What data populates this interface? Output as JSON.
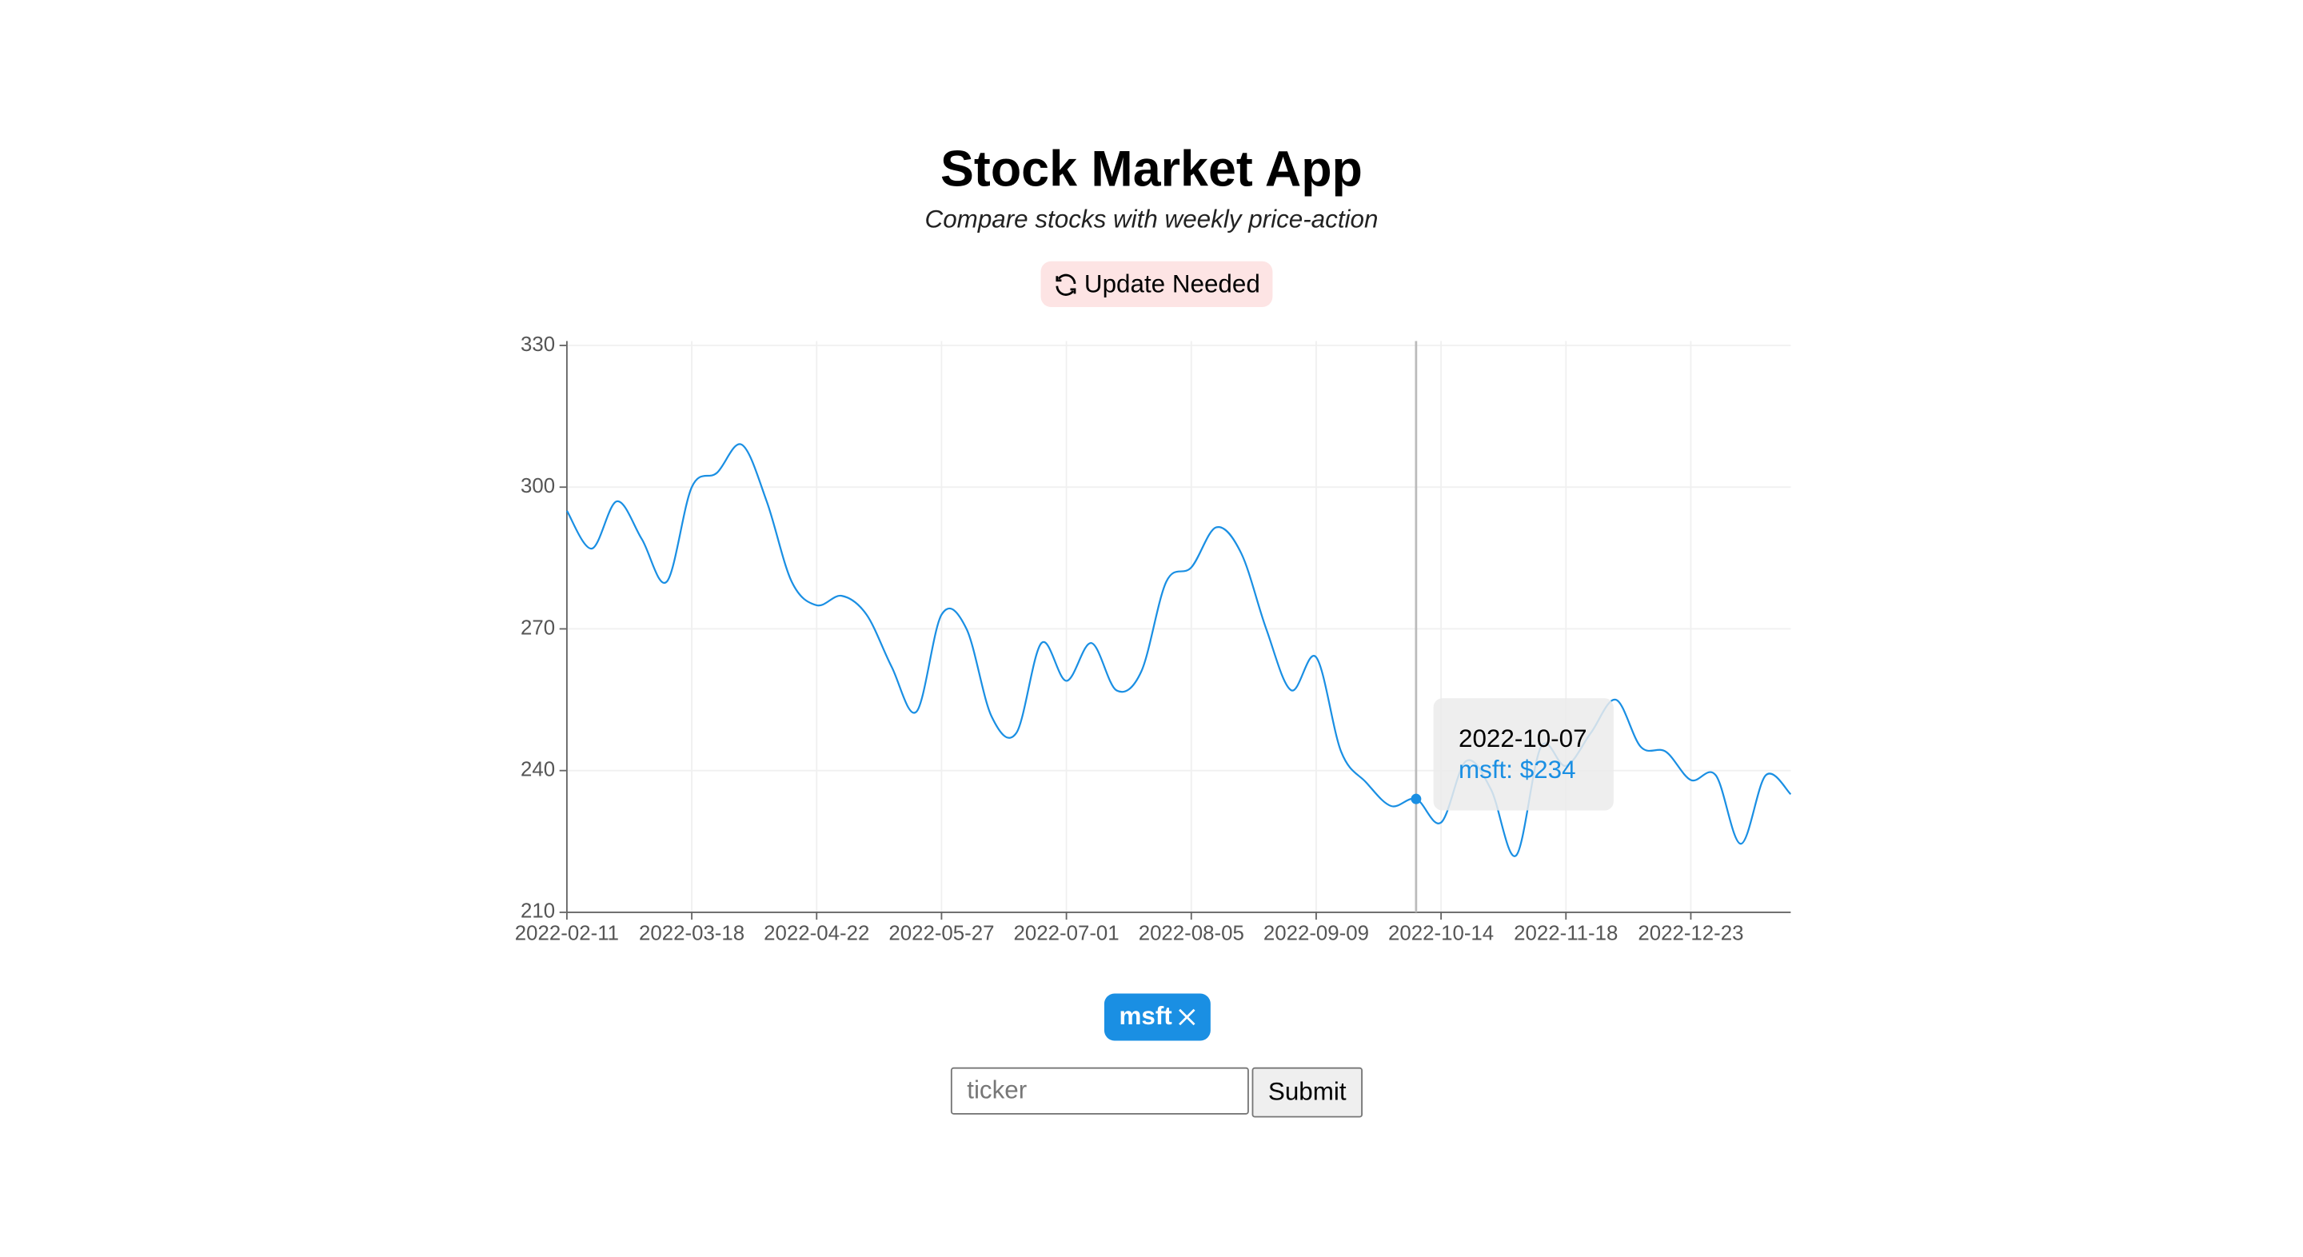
{
  "header": {
    "title": "Stock Market App",
    "subtitle": "Compare stocks with weekly price-action"
  },
  "status": {
    "label": "Update Needed"
  },
  "chart_data": {
    "type": "line",
    "x": [
      "2022-02-11",
      "2022-02-18",
      "2022-02-25",
      "2022-03-04",
      "2022-03-11",
      "2022-03-18",
      "2022-03-25",
      "2022-04-01",
      "2022-04-08",
      "2022-04-15",
      "2022-04-22",
      "2022-04-29",
      "2022-05-06",
      "2022-05-13",
      "2022-05-20",
      "2022-05-27",
      "2022-06-03",
      "2022-06-10",
      "2022-06-17",
      "2022-06-24",
      "2022-07-01",
      "2022-07-08",
      "2022-07-15",
      "2022-07-22",
      "2022-07-29",
      "2022-08-05",
      "2022-08-12",
      "2022-08-19",
      "2022-08-26",
      "2022-09-02",
      "2022-09-09",
      "2022-09-16",
      "2022-09-23",
      "2022-09-30",
      "2022-10-07",
      "2022-10-14",
      "2022-10-21",
      "2022-10-28",
      "2022-11-04",
      "2022-11-11",
      "2022-11-18",
      "2022-11-25",
      "2022-12-02",
      "2022-12-09",
      "2022-12-16",
      "2022-12-23",
      "2022-12-30",
      "2023-01-06",
      "2023-01-13",
      "2023-01-20"
    ],
    "series": [
      {
        "name": "msft",
        "color": "#1a8fe3",
        "values": [
          295,
          287,
          297,
          289,
          280,
          300,
          303,
          309,
          297,
          280,
          275,
          277,
          273,
          262,
          252.5,
          273,
          270,
          251.5,
          248,
          267,
          259,
          267,
          257,
          261,
          280,
          283,
          291.5,
          286,
          270,
          257,
          264,
          244,
          237.5,
          232.5,
          234,
          229,
          242,
          236,
          222,
          245,
          241,
          248,
          255,
          245,
          244,
          238,
          239,
          224.5,
          239,
          235
        ]
      }
    ],
    "xlim": [
      "2022-02-11",
      "2023-01-20"
    ],
    "xticks": [
      "2022-02-11",
      "2022-03-18",
      "2022-04-22",
      "2022-05-27",
      "2022-07-01",
      "2022-08-05",
      "2022-09-09",
      "2022-10-14",
      "2022-11-18",
      "2022-12-23"
    ],
    "ylim": [
      210,
      330
    ],
    "yticks": [
      210,
      240,
      270,
      300,
      330
    ],
    "grid": true,
    "tooltip": {
      "x": "2022-10-07",
      "text": "msft: $234"
    }
  },
  "chips": [
    "msft"
  ],
  "form": {
    "placeholder": "ticker",
    "button": "Submit"
  }
}
